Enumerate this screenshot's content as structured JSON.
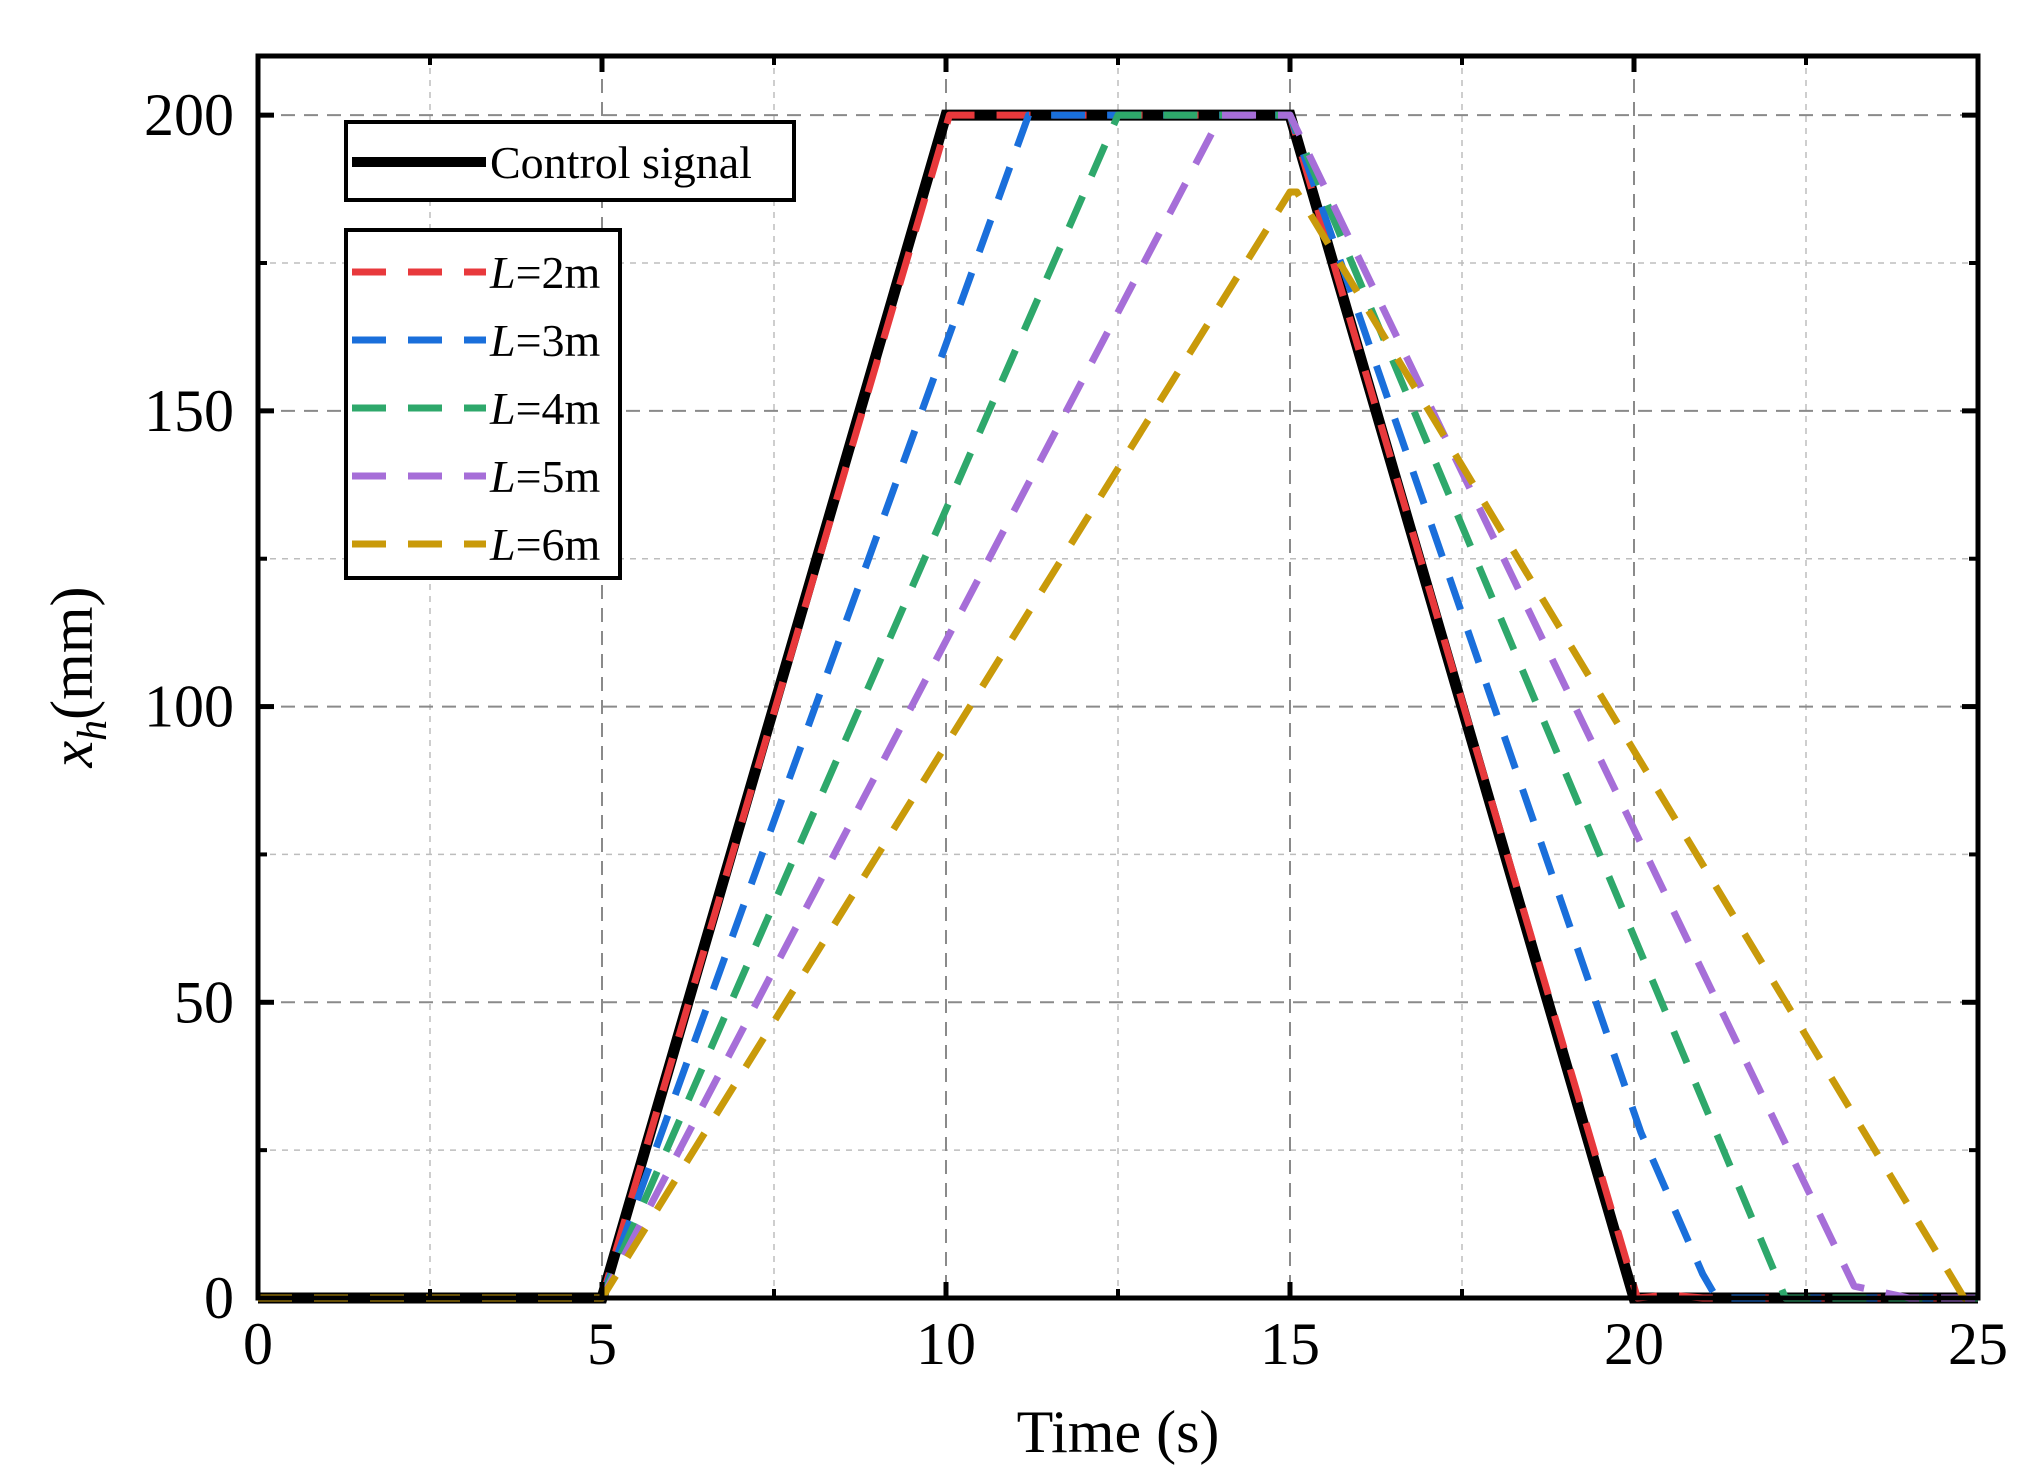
{
  "chart_data": {
    "type": "line",
    "title": "",
    "xlabel": "Time (s)",
    "ylabel_var": "x",
    "ylabel_sub": "h",
    "ylabel_unit": "(mm)",
    "xlim": [
      0,
      25
    ],
    "ylim": [
      0,
      210
    ],
    "xticks": [
      0,
      5,
      10,
      15,
      20,
      25
    ],
    "yticks": [
      0,
      50,
      100,
      150,
      200
    ],
    "xminor": [
      2.5,
      7.5,
      12.5,
      17.5,
      22.5
    ],
    "yminor": [
      25,
      75,
      125,
      175
    ],
    "grid": true,
    "legend_position": "top-left",
    "control": {
      "name": "Control signal",
      "color": "#000000",
      "x": [
        0,
        5,
        10,
        15,
        20,
        25
      ],
      "y": [
        0,
        0,
        200,
        200,
        0,
        0
      ]
    },
    "series": [
      {
        "var": "L",
        "label": "=2m",
        "color": "#e8393c",
        "x": [
          0,
          5,
          10.05,
          15.0,
          20.05,
          20.5,
          21.0,
          25
        ],
        "y": [
          0,
          0,
          200,
          200,
          0,
          0.5,
          0,
          0
        ]
      },
      {
        "var": "L",
        "label": "=3m",
        "color": "#1a6fdb",
        "x": [
          0,
          5,
          11.2,
          15.0,
          20.1,
          21.0,
          21.2,
          25
        ],
        "y": [
          0,
          0,
          200,
          200,
          28,
          4,
          0,
          0
        ]
      },
      {
        "var": "L",
        "label": "=4m",
        "color": "#2ea86b",
        "x": [
          0,
          5,
          12.5,
          15.0,
          22.2,
          25
        ],
        "y": [
          0,
          0,
          200,
          200,
          0,
          0
        ]
      },
      {
        "var": "L",
        "label": "=5m",
        "color": "#a66ed8",
        "x": [
          0,
          5,
          14.0,
          15.0,
          23.2,
          24.0,
          25
        ],
        "y": [
          0,
          0,
          200,
          200,
          2,
          0,
          0
        ]
      },
      {
        "var": "L",
        "label": "=6m",
        "color": "#c99a0a",
        "x": [
          0,
          5,
          15.0,
          15.1,
          24.8,
          25
        ],
        "y": [
          0,
          0,
          187,
          187,
          0,
          0
        ]
      }
    ]
  }
}
